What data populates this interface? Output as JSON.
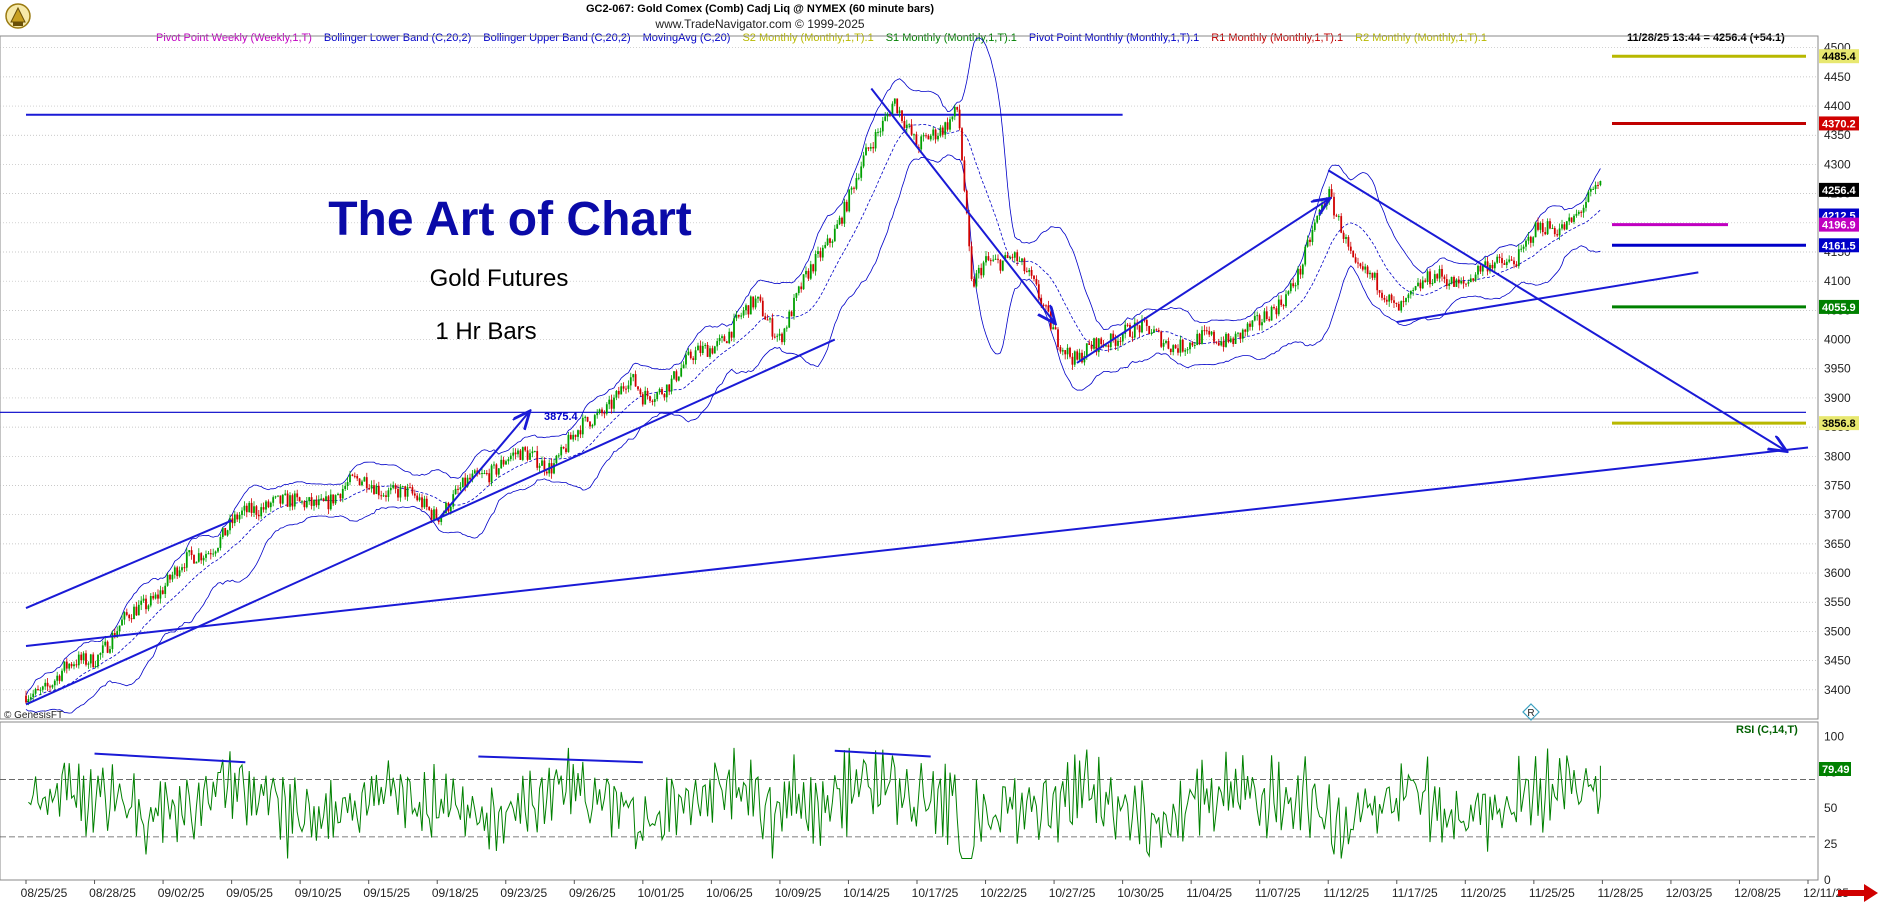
{
  "header": {
    "title": "GC2-067:  Gold Comex (Comb) Cadj Liq @ NYMEX  (60 minute bars)",
    "copyright": "www.TradeNavigator.com © 1999-2025",
    "last_quote": "11/28/25 13:44 = 4256.4 (+54.1)",
    "watermark": "© GenesisFT"
  },
  "legend": [
    {
      "label": "Pivot Point Weekly (Weekly,1,T)",
      "color": "#c000c0"
    },
    {
      "label": "Bollinger Lower Band (C,20,2)",
      "color": "#0000c8"
    },
    {
      "label": "Bollinger Upper Band (C,20,2)",
      "color": "#0000c8"
    },
    {
      "label": "MovingAvg (C,20)",
      "color": "#0000c8"
    },
    {
      "label": "S2 Monthly (Monthly,1,T).1",
      "color": "#b8b800"
    },
    {
      "label": "S1 Monthly (Monthly,1,T).1",
      "color": "#008000"
    },
    {
      "label": "Pivot Point Monthly (Monthly,1,T).1",
      "color": "#0000c8"
    },
    {
      "label": "R1 Monthly (Monthly,1,T).1",
      "color": "#c00000"
    },
    {
      "label": "R2 Monthly (Monthly,1,T).1",
      "color": "#b8b800"
    }
  ],
  "annotations": {
    "main_title": "The Art of Chart",
    "subtitle": "Gold Futures",
    "bars_label": "1 Hr Bars",
    "level_label": "3875.4",
    "rsi_label": "RSI (C,14,T)"
  },
  "colors": {
    "trendline": "#1a1ad6",
    "candle_up": "#00a000",
    "candle_down": "#d00000",
    "band": "#0000c8",
    "rsi_line": "#008000",
    "background": "#ffffff"
  },
  "chart_data": [
    {
      "type": "candlestick",
      "ylim": [
        3350,
        4520
      ],
      "y_ticks": [
        3400,
        3450,
        3500,
        3550,
        3600,
        3650,
        3700,
        3750,
        3800,
        3850,
        3900,
        3950,
        4000,
        4050,
        4100,
        4150,
        4200,
        4250,
        4300,
        4350,
        4400,
        4450,
        4500
      ],
      "x_tick_labels": [
        "08/25/25",
        "08/28/25",
        "09/02/25",
        "09/05/25",
        "09/10/25",
        "09/15/25",
        "09/18/25",
        "09/23/25",
        "09/26/25",
        "10/01/25",
        "10/06/25",
        "10/09/25",
        "10/14/25",
        "10/17/25",
        "10/22/25",
        "10/27/25",
        "10/30/25",
        "11/04/25",
        "11/07/25",
        "11/12/25",
        "11/17/25",
        "11/20/25",
        "11/25/25",
        "11/28/25",
        "12/03/25",
        "12/08/25",
        "12/11/25"
      ],
      "price_path": [
        {
          "date": "08/25/25",
          "close": 3390
        },
        {
          "date": "08/28/25",
          "close": 3460
        },
        {
          "date": "09/02/25",
          "close": 3580
        },
        {
          "date": "09/05/25",
          "close": 3680
        },
        {
          "date": "09/08/25",
          "close": 3730
        },
        {
          "date": "09/10/25",
          "close": 3710
        },
        {
          "date": "09/15/25",
          "close": 3760
        },
        {
          "date": "09/18/25",
          "close": 3705
        },
        {
          "date": "09/23/25",
          "close": 3800
        },
        {
          "date": "09/25/25",
          "close": 3790
        },
        {
          "date": "09/26/25",
          "close": 3830
        },
        {
          "date": "09/30/25",
          "close": 3930
        },
        {
          "date": "10/01/25",
          "close": 3895
        },
        {
          "date": "10/06/25",
          "close": 3990
        },
        {
          "date": "10/08/25",
          "close": 4060
        },
        {
          "date": "10/09/25",
          "close": 4010
        },
        {
          "date": "10/14/25",
          "close": 4240
        },
        {
          "date": "10/16/25",
          "close": 4420
        },
        {
          "date": "10/17/25",
          "close": 4320
        },
        {
          "date": "10/20/25",
          "close": 4400
        },
        {
          "date": "10/21/25",
          "close": 4080
        },
        {
          "date": "10/22/25",
          "close": 4130
        },
        {
          "date": "10/24/25",
          "close": 4150
        },
        {
          "date": "10/27/25",
          "close": 4020
        },
        {
          "date": "10/28/25",
          "close": 3960
        },
        {
          "date": "10/30/25",
          "close": 4020
        },
        {
          "date": "11/04/25",
          "close": 3990
        },
        {
          "date": "11/07/25",
          "close": 4020
        },
        {
          "date": "11/10/25",
          "close": 4120
        },
        {
          "date": "11/12/25",
          "close": 4250
        },
        {
          "date": "11/13/25",
          "close": 4200
        },
        {
          "date": "11/14/25",
          "close": 4120
        },
        {
          "date": "11/17/25",
          "close": 4060
        },
        {
          "date": "11/19/25",
          "close": 4110
        },
        {
          "date": "11/20/25",
          "close": 4100
        },
        {
          "date": "11/24/25",
          "close": 4150
        },
        {
          "date": "11/25/25",
          "close": 4180
        },
        {
          "date": "11/26/25",
          "close": 4190
        },
        {
          "date": "11/28/25",
          "close": 4256.4
        }
      ],
      "price_tags": [
        {
          "value": 4485.4,
          "label": "4485.4",
          "bg": "#e8e870",
          "fg": "#000000"
        },
        {
          "value": 4370.2,
          "label": "4370.2",
          "bg": "#d00000",
          "fg": "#ffffff"
        },
        {
          "value": 4256.4,
          "label": "4256.4",
          "bg": "#000000",
          "fg": "#ffffff"
        },
        {
          "value": 4212.5,
          "label": "4212.5",
          "bg": "#0000c8",
          "fg": "#ffffff"
        },
        {
          "value": 4196.9,
          "label": "4196.9",
          "bg": "#c000c0",
          "fg": "#ffffff"
        },
        {
          "value": 4161.5,
          "label": "4161.5",
          "bg": "#0000c8",
          "fg": "#ffffff"
        },
        {
          "value": 4055.9,
          "label": "4055.9",
          "bg": "#008000",
          "fg": "#ffffff"
        },
        {
          "value": 3856.8,
          "label": "3856.8",
          "bg": "#e8e870",
          "fg": "#000000"
        }
      ],
      "levels": [
        {
          "name": "R2 Monthly",
          "value": 4485.4,
          "color": "#b8b800"
        },
        {
          "name": "R1 Monthly",
          "value": 4370.2,
          "color": "#c00000"
        },
        {
          "name": "Pivot Point Weekly",
          "value": 4196.9,
          "color": "#c000c0"
        },
        {
          "name": "Pivot Point Monthly",
          "value": 4161.5,
          "color": "#0000c8"
        },
        {
          "name": "S1 Monthly",
          "value": 4055.9,
          "color": "#008000"
        },
        {
          "name": "S2 Monthly",
          "value": 3856.8,
          "color": "#b8b800"
        },
        {
          "name": "",
          "value": 3875.4,
          "color": "#0000c8"
        }
      ],
      "trendlines": [
        {
          "from": [
            "08/25/25",
            3375
          ],
          "to": [
            "10/13/25",
            4000
          ]
        },
        {
          "from": [
            "08/25/25",
            3540
          ],
          "to": [
            "09/05/25",
            3690
          ]
        },
        {
          "from": [
            "08/25/25",
            3475
          ],
          "to": [
            "12/11/25",
            3815
          ]
        },
        {
          "from": [
            "09/18/25",
            3690
          ],
          "to": [
            "09/24/25",
            3875
          ]
        },
        {
          "from": [
            "10/15/25",
            4430
          ],
          "to": [
            "10/27/25",
            4030
          ]
        },
        {
          "from": [
            "10/28/25",
            3960
          ],
          "to": [
            "11/12/25",
            4240
          ]
        },
        {
          "from": [
            "11/12/25",
            4290
          ],
          "to": [
            "12/10/25",
            3810
          ]
        },
        {
          "from": [
            "11/17/25",
            4030
          ],
          "to": [
            "12/05/25",
            4115
          ]
        }
      ],
      "horizontal_resistance": {
        "value": 4385,
        "from": "08/25/25",
        "to": "10/30/25"
      }
    },
    {
      "type": "line",
      "name": "RSI (C,14,T)",
      "ylim": [
        0,
        110
      ],
      "y_ticks": [
        0,
        25,
        50,
        75,
        100
      ],
      "reference_lines": [
        70,
        30
      ],
      "last_value": 79.49,
      "last_value_label": "79.49",
      "divergence_lines": [
        {
          "from": [
            "08/28/25",
            88
          ],
          "to": [
            "09/06/25",
            82
          ]
        },
        {
          "from": [
            "09/21/25",
            86
          ],
          "to": [
            "10/01/25",
            82
          ]
        },
        {
          "from": [
            "10/13/25",
            90
          ],
          "to": [
            "10/18/25",
            86
          ]
        }
      ]
    }
  ]
}
